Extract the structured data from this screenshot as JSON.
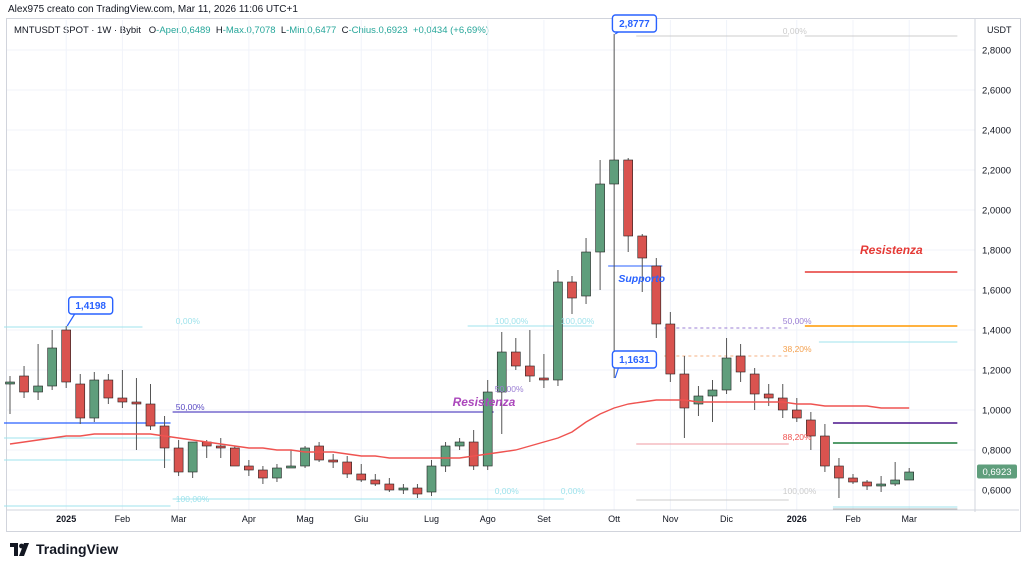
{
  "credit": "Alex975 creato con TradingView.com, Mar 11, 2026 11:06 UTC+1",
  "legend": {
    "symbol": "MNTUSDT SPOT · 1W · Bybit",
    "open_label": "O",
    "open": "-Aper.0,6489",
    "high_label": "H",
    "high": "-Max.0,7078",
    "low_label": "L",
    "low": "-Min.0,6477",
    "close_label": "C",
    "close": "-Chius.0,6923",
    "change": "+0,0434 (+6,69%)"
  },
  "currency": "USDT",
  "brand": "TradingView",
  "colors": {
    "up": "#26a69a",
    "up_fill": "#5f9e7c",
    "down": "#d9534f",
    "ma": "#ef5350",
    "accent_blue": "#2962ff"
  },
  "chart_data": {
    "type": "candlestick",
    "ylim": [
      0.5,
      2.95
    ],
    "y_ticks": [
      0.6,
      0.8,
      1.0,
      1.2,
      1.4,
      1.6,
      1.8,
      2.0,
      2.2,
      2.4,
      2.6,
      2.8
    ],
    "y_tick_labels": [
      "0,6000",
      "0,8000",
      "1,0000",
      "1,2000",
      "1,4000",
      "1,6000",
      "1,8000",
      "2,0000",
      "2,2000",
      "2,4000",
      "2,6000",
      "2,8000"
    ],
    "x_ticks": [
      {
        "i": 4,
        "label": "2025",
        "bold": true
      },
      {
        "i": 8,
        "label": "Feb"
      },
      {
        "i": 12,
        "label": "Mar"
      },
      {
        "i": 17,
        "label": "Apr"
      },
      {
        "i": 21,
        "label": "Mag"
      },
      {
        "i": 25,
        "label": "Giu"
      },
      {
        "i": 30,
        "label": "Lug"
      },
      {
        "i": 34,
        "label": "Ago"
      },
      {
        "i": 38,
        "label": "Set"
      },
      {
        "i": 43,
        "label": "Ott"
      },
      {
        "i": 47,
        "label": "Nov"
      },
      {
        "i": 51,
        "label": "Dic"
      },
      {
        "i": 56,
        "label": "2026",
        "bold": true
      },
      {
        "i": 60,
        "label": "Feb"
      },
      {
        "i": 64,
        "label": "Mar"
      }
    ],
    "candles": [
      [
        1.13,
        1.17,
        0.98,
        1.14
      ],
      [
        1.17,
        1.22,
        1.06,
        1.09
      ],
      [
        1.09,
        1.33,
        1.05,
        1.12
      ],
      [
        1.12,
        1.4,
        1.1,
        1.31
      ],
      [
        1.4,
        1.42,
        1.11,
        1.14
      ],
      [
        1.13,
        1.18,
        0.93,
        0.96
      ],
      [
        0.96,
        1.19,
        0.94,
        1.15
      ],
      [
        1.15,
        1.18,
        1.03,
        1.06
      ],
      [
        1.06,
        1.2,
        1.01,
        1.04
      ],
      [
        1.04,
        1.16,
        0.8,
        1.03
      ],
      [
        1.03,
        1.13,
        0.9,
        0.92
      ],
      [
        0.92,
        0.97,
        0.71,
        0.81
      ],
      [
        0.81,
        0.85,
        0.67,
        0.69
      ],
      [
        0.69,
        0.84,
        0.66,
        0.84
      ],
      [
        0.84,
        0.85,
        0.76,
        0.82
      ],
      [
        0.82,
        0.86,
        0.76,
        0.81
      ],
      [
        0.81,
        0.82,
        0.72,
        0.72
      ],
      [
        0.72,
        0.75,
        0.67,
        0.7
      ],
      [
        0.7,
        0.72,
        0.63,
        0.66
      ],
      [
        0.66,
        0.73,
        0.64,
        0.71
      ],
      [
        0.71,
        0.8,
        0.71,
        0.72
      ],
      [
        0.72,
        0.82,
        0.71,
        0.81
      ],
      [
        0.82,
        0.84,
        0.74,
        0.75
      ],
      [
        0.75,
        0.78,
        0.71,
        0.74
      ],
      [
        0.74,
        0.77,
        0.66,
        0.68
      ],
      [
        0.68,
        0.73,
        0.64,
        0.65
      ],
      [
        0.65,
        0.68,
        0.62,
        0.63
      ],
      [
        0.63,
        0.66,
        0.59,
        0.6
      ],
      [
        0.6,
        0.63,
        0.58,
        0.61
      ],
      [
        0.61,
        0.63,
        0.56,
        0.58
      ],
      [
        0.59,
        0.75,
        0.57,
        0.72
      ],
      [
        0.72,
        0.84,
        0.69,
        0.82
      ],
      [
        0.82,
        0.86,
        0.8,
        0.84
      ],
      [
        0.84,
        0.9,
        0.7,
        0.72
      ],
      [
        0.72,
        1.15,
        0.7,
        1.09
      ],
      [
        1.09,
        1.39,
        0.88,
        1.29
      ],
      [
        1.29,
        1.36,
        1.2,
        1.22
      ],
      [
        1.22,
        1.4,
        1.14,
        1.17
      ],
      [
        1.16,
        1.28,
        1.11,
        1.15
      ],
      [
        1.15,
        1.7,
        1.12,
        1.64
      ],
      [
        1.64,
        1.67,
        1.48,
        1.56
      ],
      [
        1.57,
        1.86,
        1.53,
        1.79
      ],
      [
        1.79,
        2.25,
        1.6,
        2.13
      ],
      [
        2.13,
        2.88,
        1.16,
        2.25
      ],
      [
        2.25,
        2.26,
        1.79,
        1.87
      ],
      [
        1.87,
        1.88,
        1.59,
        1.76
      ],
      [
        1.72,
        1.76,
        1.36,
        1.43
      ],
      [
        1.43,
        1.49,
        1.14,
        1.18
      ],
      [
        1.18,
        1.27,
        0.86,
        1.01
      ],
      [
        1.03,
        1.12,
        0.97,
        1.07
      ],
      [
        1.07,
        1.15,
        0.94,
        1.1
      ],
      [
        1.1,
        1.36,
        1.08,
        1.26
      ],
      [
        1.27,
        1.33,
        1.14,
        1.19
      ],
      [
        1.18,
        1.21,
        1.0,
        1.08
      ],
      [
        1.08,
        1.13,
        1.02,
        1.06
      ],
      [
        1.06,
        1.13,
        0.96,
        1.0
      ],
      [
        1.0,
        1.06,
        0.94,
        0.96
      ],
      [
        0.95,
        0.99,
        0.8,
        0.87
      ],
      [
        0.87,
        0.93,
        0.69,
        0.72
      ],
      [
        0.72,
        0.76,
        0.56,
        0.66
      ],
      [
        0.66,
        0.68,
        0.63,
        0.64
      ],
      [
        0.64,
        0.65,
        0.6,
        0.62
      ],
      [
        0.62,
        0.67,
        0.59,
        0.63
      ],
      [
        0.63,
        0.74,
        0.62,
        0.65
      ],
      [
        0.65,
        0.71,
        0.65,
        0.69
      ]
    ],
    "ma": [
      0.83,
      0.84,
      0.85,
      0.86,
      0.87,
      0.87,
      0.88,
      0.88,
      0.88,
      0.88,
      0.88,
      0.87,
      0.86,
      0.85,
      0.84,
      0.83,
      0.82,
      0.81,
      0.81,
      0.8,
      0.8,
      0.79,
      0.79,
      0.79,
      0.78,
      0.77,
      0.77,
      0.76,
      0.76,
      0.76,
      0.76,
      0.76,
      0.76,
      0.77,
      0.78,
      0.79,
      0.8,
      0.82,
      0.84,
      0.86,
      0.89,
      0.94,
      0.98,
      1.01,
      1.03,
      1.04,
      1.05,
      1.05,
      1.05,
      1.04,
      1.04,
      1.04,
      1.04,
      1.04,
      1.04,
      1.04,
      1.03,
      1.03,
      1.02,
      1.02,
      1.02,
      1.02,
      1.01,
      1.01,
      1.01
    ],
    "hlines": [
      {
        "name": "support-2025",
        "y": 0.935,
        "i0": 0,
        "i1": 11,
        "color": "#2962ff",
        "width": 1.2
      },
      {
        "name": "fib-a-top",
        "y": 1.415,
        "i0": 0,
        "i1": 9,
        "color": "#9fe3ec",
        "width": 1
      },
      {
        "name": "fib-a-mid",
        "y": 0.99,
        "i0": 12,
        "i1": 34,
        "color": "#5b4bc4",
        "width": 1.2
      },
      {
        "name": "fib-a-low",
        "y": 0.86,
        "i0": 0,
        "i1": 11,
        "color": "#9fe3ec",
        "width": 1
      },
      {
        "name": "fib-a-bottom",
        "y": 0.75,
        "i0": 0,
        "i1": 11,
        "color": "#9fe3ec",
        "width": 1
      },
      {
        "name": "fib-a-100",
        "y": 0.52,
        "i0": 0,
        "i1": 11,
        "color": "#9fe3ec",
        "width": 1
      },
      {
        "name": "fib-b-top",
        "y": 1.42,
        "i0": 33,
        "i1": 41,
        "color": "#9fe3ec",
        "width": 1
      },
      {
        "name": "fib-b-0",
        "y": 0.555,
        "i0": 12,
        "i1": 39,
        "color": "#9fe3ec",
        "width": 1
      },
      {
        "name": "fib-c-0",
        "y": 2.87,
        "i0": 45,
        "i1": 55,
        "color": "#cccccc",
        "width": 1
      },
      {
        "name": "fib-c-50",
        "y": 1.41,
        "i0": 47,
        "i1": 55,
        "color": "#9b7fd4",
        "width": 1,
        "dash": "3,3"
      },
      {
        "name": "fib-c-382",
        "y": 1.27,
        "i0": 47,
        "i1": 55,
        "color": "#f4b183",
        "width": 1,
        "dash": "3,3"
      },
      {
        "name": "fib-c-882",
        "y": 0.83,
        "i0": 45,
        "i1": 55,
        "color": "#ef9aa0",
        "width": 1
      },
      {
        "name": "fib-c-100",
        "y": 0.55,
        "i0": 45,
        "i1": 55,
        "color": "#cccccc",
        "width": 1
      },
      {
        "name": "right-0",
        "y": 2.87,
        "i0": 57,
        "i1": 67,
        "color": "#cccccc",
        "width": 1
      },
      {
        "name": "resistance-red",
        "y": 1.69,
        "i0": 57,
        "i1": 67,
        "color": "#e53935",
        "width": 1.5
      },
      {
        "name": "resistance-orange",
        "y": 1.42,
        "i0": 57,
        "i1": 67,
        "color": "#ff9800",
        "width": 1.5
      },
      {
        "name": "right-cyan",
        "y": 1.34,
        "i0": 58,
        "i1": 67,
        "color": "#9fe3ec",
        "width": 1
      },
      {
        "name": "right-purple",
        "y": 0.935,
        "i0": 59,
        "i1": 67,
        "color": "#4a148c",
        "width": 1.5
      },
      {
        "name": "right-green",
        "y": 0.835,
        "i0": 59,
        "i1": 67,
        "color": "#1b7c3a",
        "width": 1.5
      },
      {
        "name": "right-gray",
        "y": 0.505,
        "i0": 59,
        "i1": 67,
        "color": "#b0b0b0",
        "width": 1
      },
      {
        "name": "right-cyan-low",
        "y": 0.515,
        "i0": 59,
        "i1": 67,
        "color": "#9fe3ec",
        "width": 1
      },
      {
        "name": "support-blue-oct",
        "y": 1.72,
        "i0": 43,
        "i1": 46,
        "color": "#2962ff",
        "width": 1
      }
    ],
    "fib_labels": [
      {
        "text": "0,00%",
        "i": 11.8,
        "y": 1.43,
        "color": "#9fe3ec"
      },
      {
        "text": "50,00%",
        "i": 11.8,
        "y": 1.0,
        "color": "#5b4bc4"
      },
      {
        "text": "100,00%",
        "i": 11.8,
        "y": 0.54,
        "color": "#9fe3ec"
      },
      {
        "text": "100,00%",
        "i": 34.5,
        "y": 1.43,
        "color": "#9fe3ec"
      },
      {
        "text": "50,00%",
        "i": 34.5,
        "y": 1.09,
        "color": "#9b7fd4"
      },
      {
        "text": "0,00%",
        "i": 34.5,
        "y": 0.58,
        "color": "#9fe3ec"
      },
      {
        "text": "100,00%",
        "i": 39.2,
        "y": 1.43,
        "color": "#9fe3ec"
      },
      {
        "text": "0,00%",
        "i": 39.2,
        "y": 0.58,
        "color": "#9fe3ec"
      },
      {
        "text": "0,00%",
        "i": 55.0,
        "y": 2.88,
        "color": "#cccccc"
      },
      {
        "text": "50,00%",
        "i": 55.0,
        "y": 1.43,
        "color": "#9b7fd4"
      },
      {
        "text": "38,20%",
        "i": 55.0,
        "y": 1.29,
        "color": "#f4a14f"
      },
      {
        "text": "88,20%",
        "i": 55.0,
        "y": 0.85,
        "color": "#ef5350"
      },
      {
        "text": "100,00%",
        "i": 55.0,
        "y": 0.58,
        "color": "#cccccc"
      }
    ],
    "callouts": [
      {
        "text": "2,8777",
        "i": 44.3,
        "y": 2.93,
        "color": "#2962ff",
        "anchor_i": 43,
        "anchor_y": 2.88
      },
      {
        "text": "1,4198",
        "i": 5.6,
        "y": 1.52,
        "color": "#2962ff",
        "anchor_i": 4,
        "anchor_y": 1.42
      },
      {
        "text": "1,1631",
        "i": 44.3,
        "y": 1.25,
        "color": "#2962ff",
        "anchor_i": 43,
        "anchor_y": 1.16
      }
    ],
    "annotations": [
      {
        "text": "Resistenza",
        "i": 60.5,
        "y": 1.78,
        "color": "#e53935",
        "size": 12
      },
      {
        "text": "Resistenza",
        "i": 31.5,
        "y": 1.02,
        "color": "#ab47bc",
        "size": 12
      },
      {
        "text": "Supporto",
        "i": 43.3,
        "y": 1.64,
        "color": "#2962ff",
        "size": 10.5
      }
    ],
    "last_price": "0,6923",
    "last_value": 0.6923
  }
}
